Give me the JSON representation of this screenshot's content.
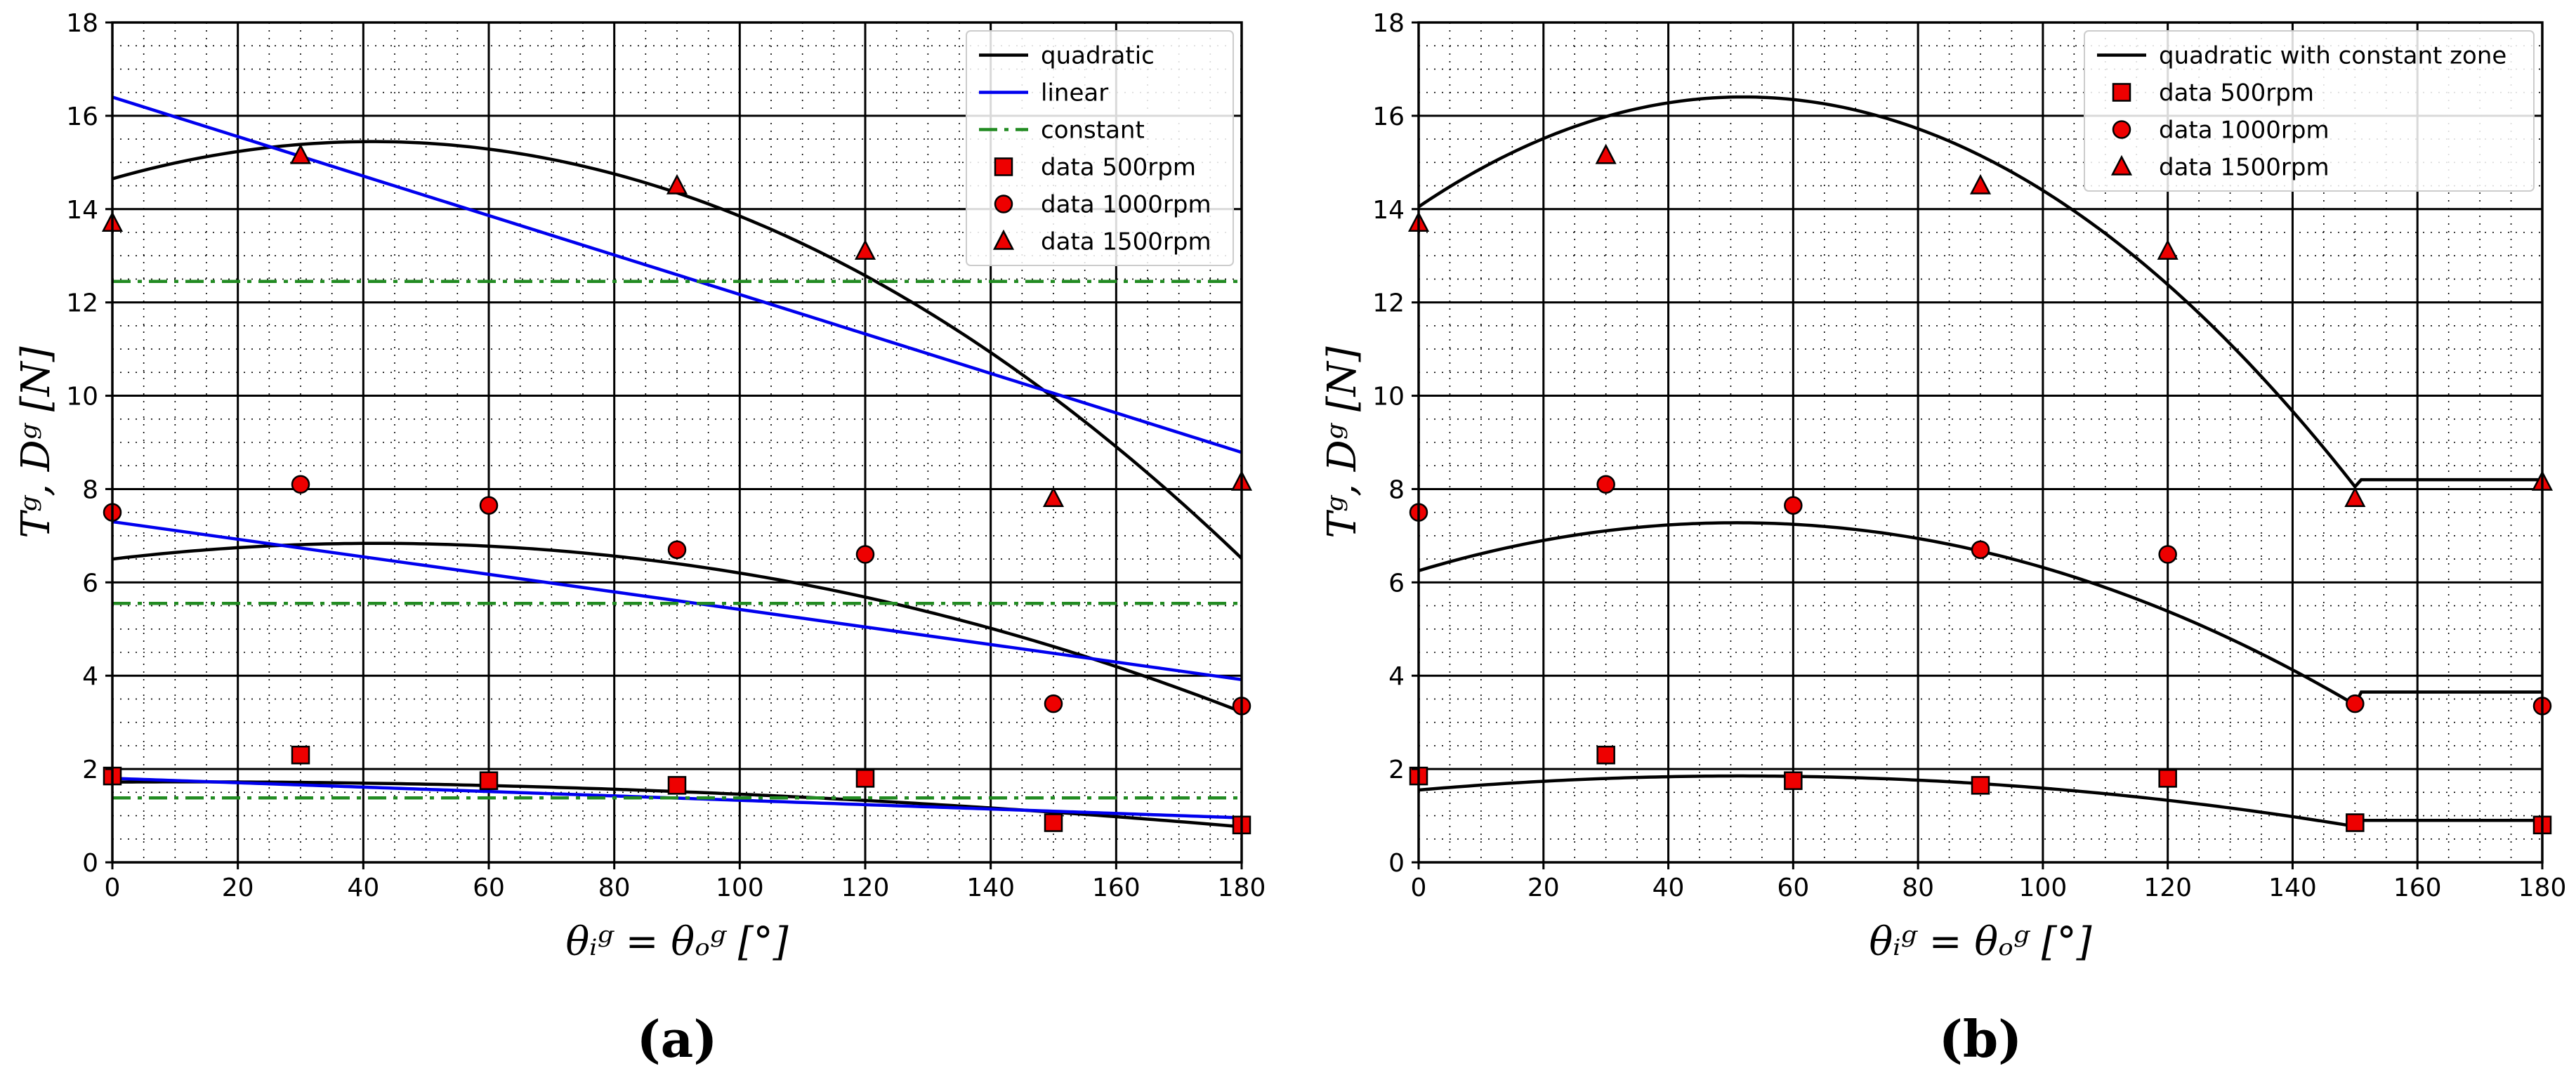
{
  "chart_data": [
    {
      "type": "line",
      "panel_label": "(a)",
      "xlabel": "θᵢᵍ = θₒᵍ [°]",
      "ylabel": "Tᵍ, Dᵍ [N]",
      "xlim": [
        0,
        180
      ],
      "ylim": [
        0,
        18
      ],
      "xticks": [
        0,
        20,
        40,
        60,
        80,
        100,
        120,
        140,
        160,
        180
      ],
      "yticks": [
        0,
        2,
        4,
        6,
        8,
        10,
        12,
        14,
        16,
        18
      ],
      "grid": true,
      "legend_position": "top-right",
      "series": [
        {
          "name": "quadratic",
          "kind": "line",
          "color": "#000000",
          "dash": "solid",
          "coeffs": [
            [
              14.65,
              0.0385,
              -0.000465
            ],
            [
              6.5,
              0.016,
              -0.00019
            ],
            [
              1.72,
              0.0008,
              -3.4e-05
            ]
          ]
        },
        {
          "name": "linear",
          "kind": "line",
          "color": "#0000ee",
          "dash": "solid",
          "coeffs": [
            [
              16.4,
              -0.0423
            ],
            [
              7.3,
              -0.0188
            ],
            [
              1.8,
              -0.0047
            ]
          ]
        },
        {
          "name": "constant",
          "kind": "line",
          "color": "#228b22",
          "dash": "dashdot",
          "coeffs": [
            [
              12.45
            ],
            [
              5.55
            ],
            [
              1.38
            ]
          ]
        },
        {
          "name": "data 500rpm",
          "kind": "marker",
          "marker": "square",
          "x": [
            0,
            30,
            60,
            90,
            120,
            150,
            180
          ],
          "y": [
            1.85,
            2.3,
            1.75,
            1.65,
            1.8,
            0.85,
            0.8
          ]
        },
        {
          "name": "data 1000rpm",
          "kind": "marker",
          "marker": "circle",
          "x": [
            0,
            30,
            60,
            90,
            120,
            150,
            180
          ],
          "y": [
            7.5,
            8.1,
            7.65,
            6.7,
            6.6,
            3.4,
            3.35
          ]
        },
        {
          "name": "data 1500rpm",
          "kind": "marker",
          "marker": "triangle",
          "x": [
            0,
            30,
            60,
            90,
            120,
            150,
            180
          ],
          "y": [
            13.7,
            15.15,
            null,
            14.5,
            13.1,
            7.8,
            8.15
          ]
        }
      ]
    },
    {
      "type": "line",
      "panel_label": "(b)",
      "xlabel": "θᵢᵍ = θₒᵍ [°]",
      "ylabel": "Tᵍ, Dᵍ [N]",
      "xlim": [
        0,
        180
      ],
      "ylim": [
        0,
        18
      ],
      "xticks": [
        0,
        20,
        40,
        60,
        80,
        100,
        120,
        140,
        160,
        180
      ],
      "yticks": [
        0,
        2,
        4,
        6,
        8,
        10,
        12,
        14,
        16,
        18
      ],
      "grid": true,
      "legend_position": "top-right",
      "series": [
        {
          "name": "quadratic with constant zone",
          "kind": "line",
          "color": "#000000",
          "dash": "solid",
          "break_x": 150,
          "coeffs": [
            [
              14.05,
              0.0905,
              -0.00087
            ],
            [
              6.25,
              0.0404,
              -0.000397
            ],
            [
              1.55,
              0.0116,
              -0.000112
            ]
          ],
          "const_after": [
            8.2,
            3.65,
            0.9
          ]
        },
        {
          "name": "data 500rpm",
          "kind": "marker",
          "marker": "square",
          "x": [
            0,
            30,
            60,
            90,
            120,
            150,
            180
          ],
          "y": [
            1.85,
            2.3,
            1.75,
            1.65,
            1.8,
            0.85,
            0.8
          ]
        },
        {
          "name": "data 1000rpm",
          "kind": "marker",
          "marker": "circle",
          "x": [
            0,
            30,
            60,
            90,
            120,
            150,
            180
          ],
          "y": [
            7.5,
            8.1,
            7.65,
            6.7,
            6.6,
            3.4,
            3.35
          ]
        },
        {
          "name": "data 1500rpm",
          "kind": "marker",
          "marker": "triangle",
          "x": [
            0,
            30,
            60,
            90,
            120,
            150,
            180
          ],
          "y": [
            13.7,
            15.15,
            null,
            14.5,
            13.1,
            7.8,
            8.15
          ]
        }
      ]
    }
  ]
}
